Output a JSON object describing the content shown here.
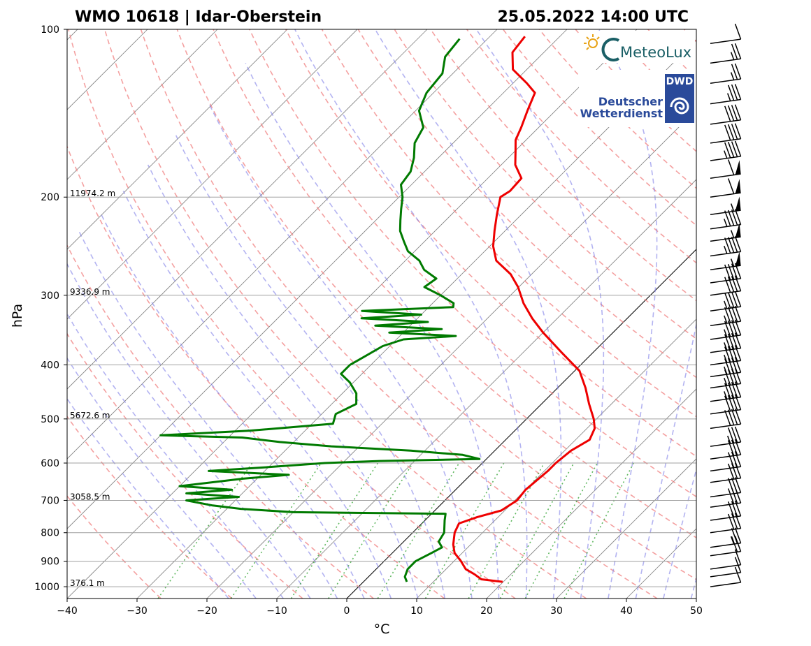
{
  "header": {
    "station": "WMO 10618 | Idar-Oberstein",
    "datetime": "25.05.2022 14:00 UTC"
  },
  "logos": {
    "meteolux": "MeteoLux",
    "dwd_badge": "DWD",
    "dwd_line1": "Deutscher",
    "dwd_line2": "Wetterdienst"
  },
  "colors": {
    "temperature": "#ee0000",
    "dewpoint": "#007a00",
    "dry_adiabat": "#f08080",
    "moist_adiabat": "#8080e8",
    "mixing_ratio": "#2ca02c",
    "isotherm": "#808080",
    "isobar": "#a0a0a0"
  },
  "chart_data": {
    "type": "skew-t",
    "xlabel": "°C",
    "ylabel": "hPa",
    "xlim": [
      -40,
      50
    ],
    "ylim": [
      1050,
      100
    ],
    "y_scale": "log",
    "grid": true,
    "x_ticks": [
      -40,
      -30,
      -20,
      -10,
      0,
      10,
      20,
      30,
      40,
      50
    ],
    "x_tick_labels": [
      "−40",
      "−30",
      "−20",
      "−10",
      "0",
      "10",
      "20",
      "30",
      "40",
      "50"
    ],
    "y_ticks": [
      100,
      200,
      300,
      400,
      500,
      600,
      700,
      800,
      900,
      1000
    ],
    "y_tick_labels": [
      "100",
      "200",
      "300",
      "400",
      "500",
      "600",
      "700",
      "800",
      "900",
      "1000"
    ],
    "height_labels": [
      {
        "p": 200,
        "text": "11974.2 m"
      },
      {
        "p": 300,
        "text": "9336.9 m"
      },
      {
        "p": 500,
        "text": "5672.6 m"
      },
      {
        "p": 700,
        "text": "3058.5 m"
      },
      {
        "p": 1000,
        "text": "376.1 m"
      }
    ],
    "series": [
      {
        "key": "temperature",
        "points": [
          [
            980,
            19.9
          ],
          [
            970,
            16.5
          ],
          [
            950,
            14.8
          ],
          [
            930,
            12.8
          ],
          [
            900,
            11.0
          ],
          [
            870,
            8.9
          ],
          [
            840,
            7.5
          ],
          [
            800,
            6.0
          ],
          [
            770,
            5.3
          ],
          [
            750,
            7.0
          ],
          [
            730,
            9.5
          ],
          [
            700,
            10.3
          ],
          [
            670,
            10.0
          ],
          [
            640,
            10.3
          ],
          [
            620,
            10.5
          ],
          [
            600,
            10.5
          ],
          [
            570,
            10.9
          ],
          [
            545,
            12.0
          ],
          [
            520,
            11.1
          ],
          [
            500,
            9.6
          ],
          [
            470,
            6.8
          ],
          [
            440,
            4.0
          ],
          [
            410,
            0.7
          ],
          [
            380,
            -4.5
          ],
          [
            350,
            -10.0
          ],
          [
            330,
            -13.6
          ],
          [
            310,
            -17.0
          ],
          [
            290,
            -20.1
          ],
          [
            275,
            -23.0
          ],
          [
            260,
            -27.0
          ],
          [
            245,
            -29.5
          ],
          [
            230,
            -31.5
          ],
          [
            215,
            -33.5
          ],
          [
            200,
            -35.5
          ],
          [
            195,
            -35.0
          ],
          [
            185,
            -35.2
          ],
          [
            175,
            -38.0
          ],
          [
            165,
            -40.0
          ],
          [
            158,
            -41.5
          ],
          [
            150,
            -42.5
          ],
          [
            140,
            -44.0
          ],
          [
            130,
            -45.5
          ],
          [
            125,
            -48.0
          ],
          [
            118,
            -52.0
          ],
          [
            110,
            -54.5
          ],
          [
            103,
            -55.0
          ]
        ]
      },
      {
        "key": "dewpoint",
        "points": [
          [
            980,
            6.2
          ],
          [
            960,
            5.2
          ],
          [
            930,
            4.5
          ],
          [
            900,
            4.5
          ],
          [
            870,
            5.6
          ],
          [
            850,
            6.3
          ],
          [
            830,
            5.0
          ],
          [
            800,
            4.5
          ],
          [
            760,
            2.8
          ],
          [
            740,
            2.0
          ],
          [
            735,
            -20.0
          ],
          [
            725,
            -28.0
          ],
          [
            715,
            -32.5
          ],
          [
            700,
            -37.0
          ],
          [
            690,
            -30.0
          ],
          [
            680,
            -38.0
          ],
          [
            670,
            -32.0
          ],
          [
            660,
            -40.0
          ],
          [
            640,
            -32.0
          ],
          [
            630,
            -26.0
          ],
          [
            620,
            -38.0
          ],
          [
            610,
            -30.0
          ],
          [
            600,
            -22.5
          ],
          [
            595,
            -15.0
          ],
          [
            590,
            -1.0
          ],
          [
            580,
            -4.0
          ],
          [
            570,
            -12.0
          ],
          [
            560,
            -24.0
          ],
          [
            550,
            -32.0
          ],
          [
            540,
            -38.0
          ],
          [
            535,
            -50.0
          ],
          [
            525,
            -38.0
          ],
          [
            510,
            -27.0
          ],
          [
            490,
            -28.0
          ],
          [
            470,
            -26.5
          ],
          [
            450,
            -28.0
          ],
          [
            430,
            -30.5
          ],
          [
            415,
            -33.0
          ],
          [
            400,
            -33.0
          ],
          [
            385,
            -32.0
          ],
          [
            370,
            -31.0
          ],
          [
            360,
            -29.0
          ],
          [
            355,
            -22.0
          ],
          [
            350,
            -32.0
          ],
          [
            345,
            -25.0
          ],
          [
            340,
            -35.0
          ],
          [
            335,
            -28.0
          ],
          [
            330,
            -38.0
          ],
          [
            325,
            -30.0
          ],
          [
            320,
            -39.0
          ],
          [
            315,
            -26.5
          ],
          [
            310,
            -27.0
          ],
          [
            300,
            -30.0
          ],
          [
            290,
            -33.5
          ],
          [
            280,
            -33.0
          ],
          [
            270,
            -36.0
          ],
          [
            260,
            -38.0
          ],
          [
            250,
            -41.0
          ],
          [
            240,
            -43.0
          ],
          [
            230,
            -45.0
          ],
          [
            220,
            -46.5
          ],
          [
            210,
            -48.0
          ],
          [
            200,
            -49.5
          ],
          [
            190,
            -51.5
          ],
          [
            180,
            -52.0
          ],
          [
            170,
            -53.5
          ],
          [
            160,
            -55.5
          ],
          [
            150,
            -56.5
          ],
          [
            140,
            -59.5
          ],
          [
            130,
            -61.0
          ],
          [
            120,
            -61.5
          ],
          [
            112,
            -63.5
          ],
          [
            104,
            -64.0
          ]
        ]
      }
    ],
    "wind_barbs": [
      {
        "p": 1000,
        "knots": 10
      },
      {
        "p": 960,
        "knots": 10
      },
      {
        "p": 930,
        "knots": 10
      },
      {
        "p": 880,
        "knots": 20
      },
      {
        "p": 850,
        "knots": 25
      },
      {
        "p": 800,
        "knots": 30
      },
      {
        "p": 760,
        "knots": 30
      },
      {
        "p": 720,
        "knots": 30
      },
      {
        "p": 690,
        "knots": 30
      },
      {
        "p": 650,
        "knots": 30
      },
      {
        "p": 620,
        "knots": 30
      },
      {
        "p": 590,
        "knots": 30
      },
      {
        "p": 560,
        "knots": 35
      },
      {
        "p": 520,
        "knots": 40
      },
      {
        "p": 490,
        "knots": 40
      },
      {
        "p": 465,
        "knots": 45
      },
      {
        "p": 440,
        "knots": 45
      },
      {
        "p": 420,
        "knots": 45
      },
      {
        "p": 400,
        "knots": 45
      },
      {
        "p": 380,
        "knots": 45
      },
      {
        "p": 360,
        "knots": 45
      },
      {
        "p": 340,
        "knots": 45
      },
      {
        "p": 320,
        "knots": 45
      },
      {
        "p": 300,
        "knots": 40
      },
      {
        "p": 285,
        "knots": 40
      },
      {
        "p": 270,
        "knots": 55
      },
      {
        "p": 255,
        "knots": 45
      },
      {
        "p": 240,
        "knots": 55
      },
      {
        "p": 228,
        "knots": 45
      },
      {
        "p": 215,
        "knots": 55
      },
      {
        "p": 200,
        "knots": 60
      },
      {
        "p": 185,
        "knots": 60
      },
      {
        "p": 172,
        "knots": 45
      },
      {
        "p": 160,
        "knots": 40
      },
      {
        "p": 148,
        "knots": 40
      },
      {
        "p": 136,
        "knots": 35
      },
      {
        "p": 125,
        "knots": 25
      },
      {
        "p": 115,
        "knots": 25
      },
      {
        "p": 106,
        "knots": 10
      }
    ]
  }
}
